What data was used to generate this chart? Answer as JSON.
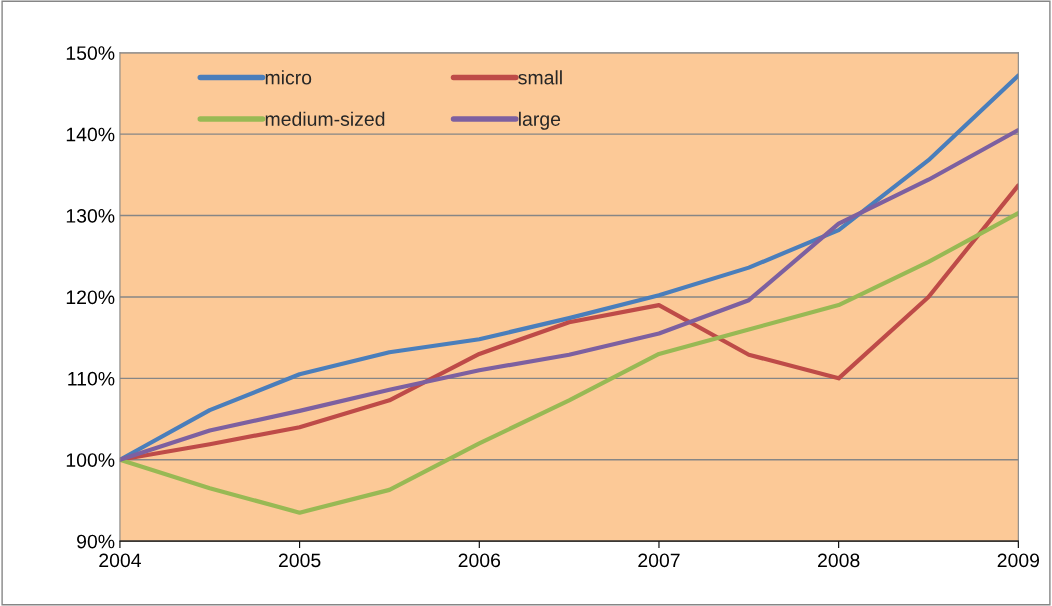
{
  "chart_data": {
    "type": "line",
    "x": [
      2004,
      2004.5,
      2005,
      2005.5,
      2006,
      2006.5,
      2007,
      2007.5,
      2008,
      2008.5,
      2009
    ],
    "series": [
      {
        "name": "micro",
        "color": "#4a7ebb",
        "values": [
          100,
          106.1,
          110.5,
          113.2,
          114.8,
          117.4,
          120.2,
          123.6,
          128.2,
          136.8,
          147.2
        ]
      },
      {
        "name": "small",
        "color": "#be4b48",
        "values": [
          100,
          101.9,
          104,
          107.3,
          113,
          116.9,
          119,
          112.9,
          110,
          120,
          133.7
        ]
      },
      {
        "name": "medium-sized",
        "color": "#98b954",
        "values": [
          100,
          96.5,
          93.5,
          96.3,
          102,
          107.3,
          113,
          116,
          119,
          124.3,
          130.3
        ]
      },
      {
        "name": "large",
        "color": "#7d60a0",
        "values": [
          100,
          103.6,
          106,
          108.6,
          111,
          112.9,
          115.5,
          119.6,
          129,
          134.4,
          140.5
        ]
      }
    ],
    "xlim": [
      2004,
      2009
    ],
    "xticks": [
      2004,
      2005,
      2006,
      2007,
      2008,
      2009
    ],
    "ylim": [
      90,
      150
    ],
    "yticks": [
      {
        "value": 90,
        "label": "90%"
      },
      {
        "value": 100,
        "label": "100%"
      },
      {
        "value": 110,
        "label": "110%"
      },
      {
        "value": 120,
        "label": "120%"
      },
      {
        "value": 130,
        "label": "130%"
      },
      {
        "value": 140,
        "label": "140%"
      },
      {
        "value": 150,
        "label": "150%"
      }
    ],
    "grid": "y",
    "legend": "top left",
    "marker": "none",
    "line_style": "solid"
  }
}
